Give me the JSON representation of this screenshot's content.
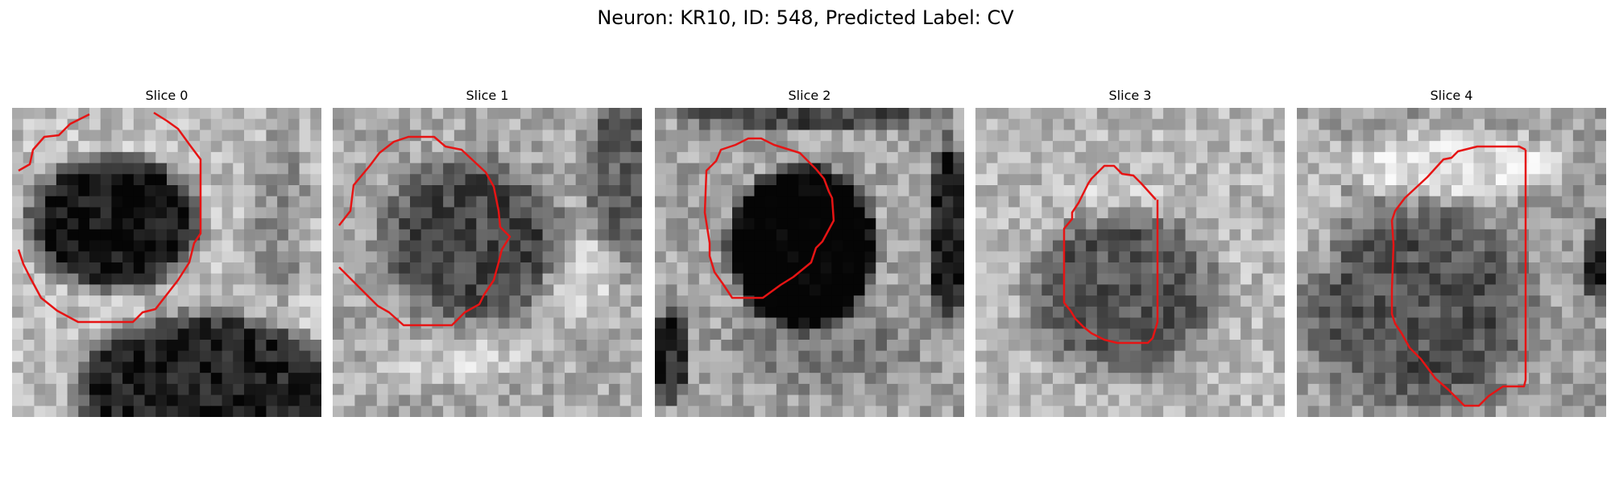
{
  "figure": {
    "title": "Neuron: KR10, ID: 548, Predicted Label: CV"
  },
  "contour_color": "#e61414",
  "colormap": "gray",
  "panels": [
    {
      "title": "Slice 0"
    },
    {
      "title": "Slice 1"
    },
    {
      "title": "Slice 2"
    },
    {
      "title": "Slice 3"
    },
    {
      "title": "Slice 4"
    }
  ]
}
